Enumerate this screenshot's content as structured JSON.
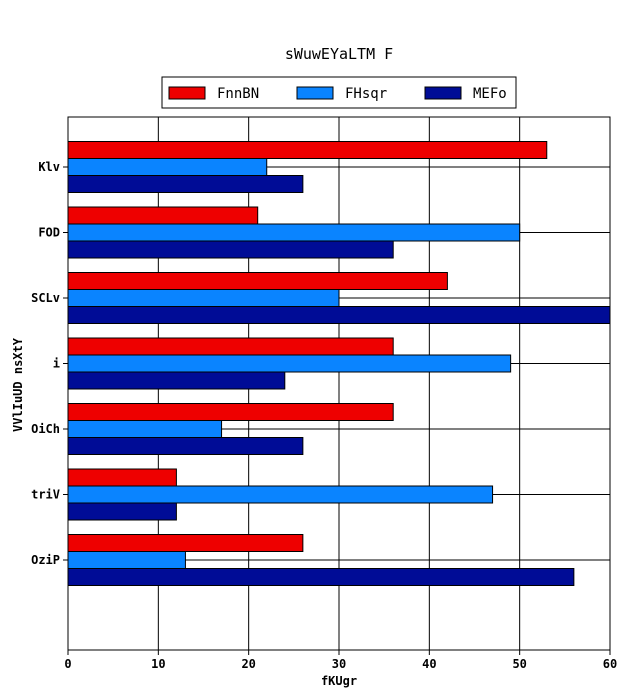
{
  "chart_data": {
    "type": "bar",
    "orientation": "horizontal",
    "title": "sWuwEYaLTM F",
    "xlabel": "fKUgr",
    "ylabel": "VVlIuUD nsXtY",
    "categories": [
      "Klv",
      "FOD",
      "SCLv",
      "i",
      "OiCh",
      "triV",
      "OziP"
    ],
    "series": [
      {
        "name": "FnnBN",
        "color": "#ee0000",
        "values": [
          53,
          21,
          42,
          36,
          36,
          12,
          26
        ]
      },
      {
        "name": "FHsqr",
        "color": "#0a84ff",
        "values": [
          22,
          50,
          30,
          49,
          17,
          47,
          13
        ]
      },
      {
        "name": "MEFo",
        "color": "#000c96",
        "values": [
          26,
          36,
          60,
          24,
          26,
          12,
          56
        ]
      }
    ],
    "xlim": [
      0,
      60
    ],
    "xticks": [
      "0",
      "10",
      "20",
      "30",
      "40",
      "50",
      "60"
    ],
    "grid": true,
    "legend_position": "top-center"
  }
}
